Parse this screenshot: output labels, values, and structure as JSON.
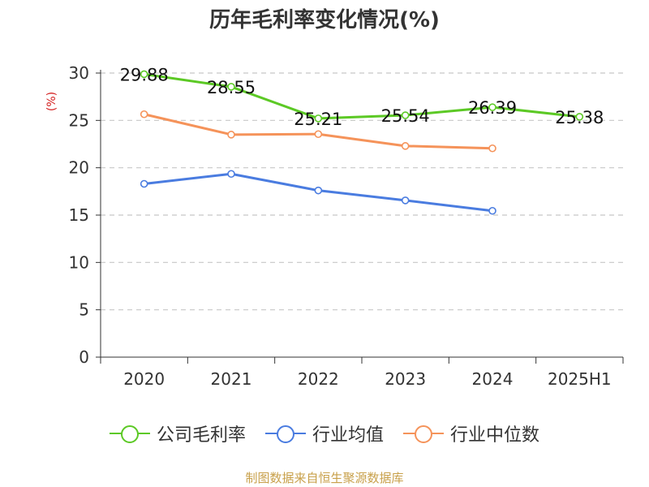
{
  "chart_data": {
    "type": "line",
    "title": "历年毛利率变化情况(%)",
    "ylabel": "(%)",
    "xlabel": "",
    "categories": [
      "2020",
      "2021",
      "2022",
      "2023",
      "2024",
      "2025H1"
    ],
    "ylim": [
      0,
      30
    ],
    "yticks": [
      0,
      5,
      10,
      15,
      20,
      25,
      30
    ],
    "grid": true,
    "legend_position": "bottom",
    "series": [
      {
        "name": "公司毛利率",
        "color": "#5cc925",
        "values": [
          29.88,
          28.55,
          25.21,
          25.54,
          26.39,
          25.38
        ],
        "labels": [
          "29.88",
          "28.55",
          "25.21",
          "25.54",
          "26.39",
          "25.38"
        ]
      },
      {
        "name": "行业均值",
        "color": "#4a7ce0",
        "values": [
          18.3,
          19.35,
          17.6,
          16.55,
          15.45,
          null
        ]
      },
      {
        "name": "行业中位数",
        "color": "#f5935a",
        "values": [
          25.65,
          23.5,
          23.55,
          22.3,
          22.05,
          null
        ]
      }
    ]
  },
  "footer": {
    "source": "制图数据来自恒生聚源数据库"
  }
}
